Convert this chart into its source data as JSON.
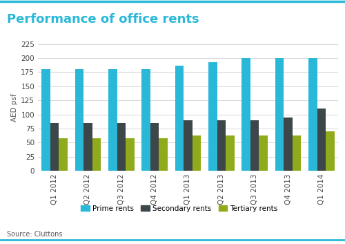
{
  "title": "Performance of office rents",
  "ylabel": "AED psf",
  "source": "Source: Cluttons",
  "categories": [
    "Q1 2012",
    "Q2 2012",
    "Q3 2012",
    "Q4 2012",
    "Q1 2013",
    "Q2 2013",
    "Q3 2013",
    "Q4 2013",
    "Q1 2014"
  ],
  "prime": [
    180,
    180,
    180,
    180,
    187,
    192,
    200,
    200,
    200
  ],
  "secondary": [
    85,
    85,
    85,
    85,
    90,
    90,
    90,
    95,
    110
  ],
  "tertiary": [
    58,
    58,
    58,
    58,
    63,
    63,
    63,
    63,
    70
  ],
  "prime_color": "#29b8d8",
  "secondary_color": "#3d4649",
  "tertiary_color": "#8faa1b",
  "title_color": "#29b8d8",
  "bg_color": "#ffffff",
  "grid_color": "#d0d0d0",
  "ylim": [
    0,
    225
  ],
  "yticks": [
    0,
    25,
    50,
    75,
    100,
    125,
    150,
    175,
    200,
    225
  ],
  "legend_labels": [
    "Prime rents",
    "Secondary rents",
    "Tertiary rents"
  ],
  "title_fontsize": 13,
  "label_fontsize": 7.5,
  "tick_fontsize": 7.5,
  "source_fontsize": 7,
  "bar_width": 0.26
}
